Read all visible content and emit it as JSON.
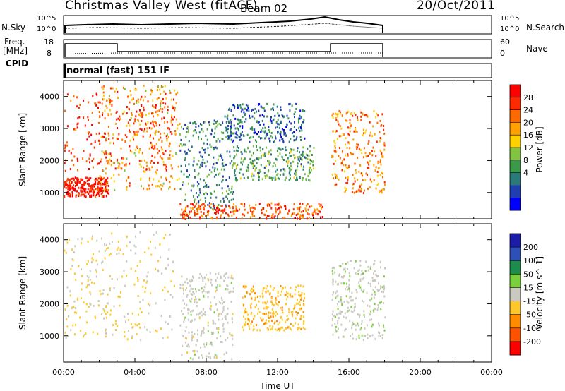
{
  "header": {
    "title": "Christmas Valley West (fitACF)",
    "beam": "Beam 02",
    "date": "20/Oct/2011"
  },
  "panels": {
    "nsky": {
      "left_label": "N.Sky",
      "right_label": "N.Search",
      "left_ticks": [
        "10^5",
        "10^0"
      ],
      "right_ticks": [
        "10^5",
        "10^0"
      ]
    },
    "freq": {
      "left_label_line1": "Freq.",
      "left_label_line2": "[MHz]",
      "right_label": "Nave",
      "left_ticks": [
        "18",
        "8"
      ],
      "right_ticks": [
        "60",
        "0"
      ]
    },
    "cpid": {
      "label": "CPID",
      "text": "normal (fast) 151 IF"
    }
  },
  "colorbars": {
    "power": {
      "title": "Power [dB]",
      "colors": [
        "#0000ff",
        "#1f3fb0",
        "#2a7a7a",
        "#3b9a4a",
        "#82c341",
        "#ffd100",
        "#ffa100",
        "#ff6a00",
        "#ff2a00",
        "#ff0000"
      ],
      "ticks": [
        "28",
        "24",
        "20",
        "16",
        "12",
        "8",
        "4"
      ]
    },
    "velocity": {
      "title": "Velocity [m s^-1]",
      "colors": [
        "#ff0000",
        "#ff5200",
        "#ff8b00",
        "#ffc82a",
        "#c9c9c0",
        "#7ccf3c",
        "#1e8c4a",
        "#2e4fb8",
        "#1c1ca8"
      ],
      "ticks": [
        "200",
        "100",
        "50",
        "15",
        "-15",
        "-50",
        "-100",
        "-200"
      ]
    }
  },
  "chart_data": [
    {
      "type": "heatmap",
      "quantity": "Power",
      "unit": "dB",
      "xlabel": "Time UT",
      "ylabel": "Slant Range [km]",
      "xlim": [
        0,
        24
      ],
      "ylim": [
        180,
        4500
      ],
      "xticks": [
        "00:00",
        "04:00",
        "08:00",
        "12:00",
        "16:00",
        "20:00",
        "00:00"
      ],
      "yticks": [
        1000,
        2000,
        3000,
        4000
      ],
      "data_extent_hours": [
        0,
        18
      ],
      "scatter_regions": [
        {
          "t0": 0.0,
          "t1": 6.2,
          "r0": 1700,
          "r1": 4200,
          "value": 26
        },
        {
          "t0": 0.0,
          "t1": 2.5,
          "r0": 900,
          "r1": 1500,
          "value": 28
        },
        {
          "t0": 2.0,
          "t1": 6.5,
          "r0": 1100,
          "r1": 4400,
          "value": 20
        },
        {
          "t0": 6.5,
          "t1": 9.5,
          "r0": 500,
          "r1": 3300,
          "value": 10
        },
        {
          "t0": 9.0,
          "t1": 13.5,
          "r0": 2600,
          "r1": 3800,
          "value": 8
        },
        {
          "t0": 9.5,
          "t1": 14.0,
          "r0": 1400,
          "r1": 2500,
          "value": 12
        },
        {
          "t0": 6.5,
          "t1": 14.5,
          "r0": 200,
          "r1": 700,
          "value": 24
        },
        {
          "t0": 15.0,
          "t1": 18.0,
          "r0": 1000,
          "r1": 3600,
          "value": 22
        }
      ]
    },
    {
      "type": "heatmap",
      "quantity": "Velocity",
      "unit": "m s^-1",
      "xlabel": "Time UT",
      "ylabel": "Slant Range [km]",
      "xlim": [
        0,
        24
      ],
      "ylim": [
        180,
        4500
      ],
      "xticks": [
        "00:00",
        "04:00",
        "08:00",
        "12:00",
        "16:00",
        "20:00",
        "00:00"
      ],
      "yticks": [
        1000,
        2000,
        3000,
        4000
      ],
      "data_extent_hours": [
        0,
        18
      ],
      "scatter_regions": [
        {
          "t0": 0.0,
          "t1": 6.2,
          "r0": 900,
          "r1": 4300,
          "value": -30
        },
        {
          "t0": 6.5,
          "t1": 9.5,
          "r0": 300,
          "r1": 3000,
          "value": 0
        },
        {
          "t0": 10.0,
          "t1": 13.5,
          "r0": 1200,
          "r1": 2600,
          "value": -60
        },
        {
          "t0": 15.0,
          "t1": 18.0,
          "r0": 900,
          "r1": 3400,
          "value": 5
        }
      ]
    }
  ]
}
